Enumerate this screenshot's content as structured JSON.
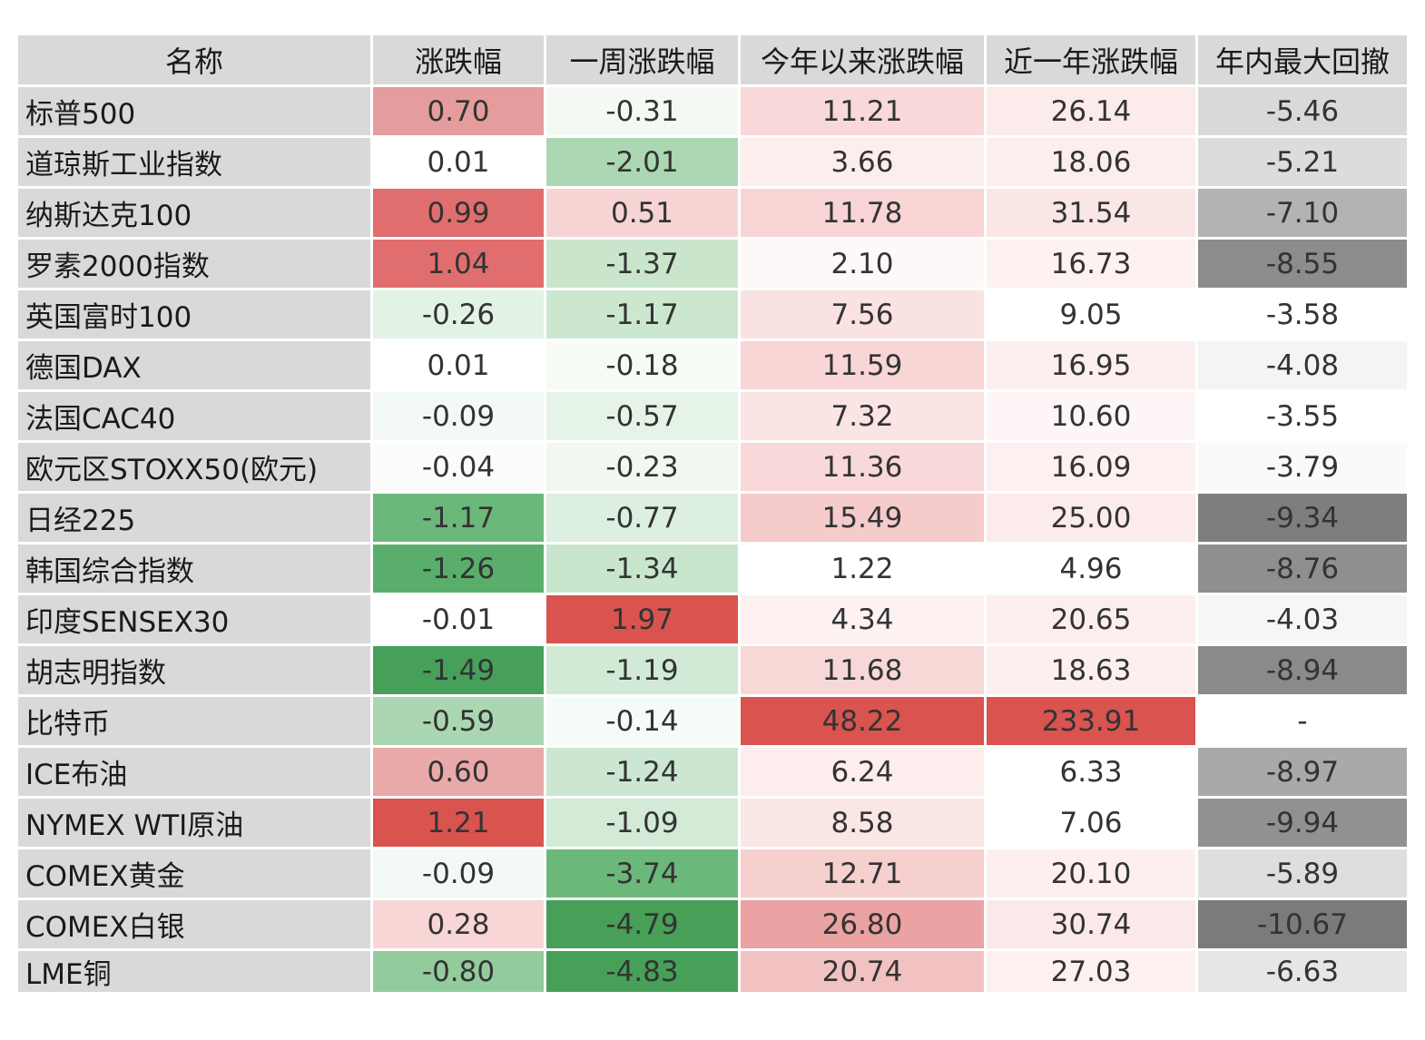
{
  "chart_data": {
    "type": "table",
    "columns": [
      "名称",
      "涨跌幅",
      "一周涨跌幅",
      "今年以来涨跌幅",
      "近一年涨跌幅",
      "年内最大回撤"
    ],
    "rows": [
      [
        "标普500",
        "0.70",
        "-0.31",
        "11.21",
        "26.14",
        "-5.46"
      ],
      [
        "道琼斯工业指数",
        "0.01",
        "-2.01",
        "3.66",
        "18.06",
        "-5.21"
      ],
      [
        "纳斯达克100",
        "0.99",
        "0.51",
        "11.78",
        "31.54",
        "-7.10"
      ],
      [
        "罗素2000指数",
        "1.04",
        "-1.37",
        "2.10",
        "16.73",
        "-8.55"
      ],
      [
        "英国富时100",
        "-0.26",
        "-1.17",
        "7.56",
        "9.05",
        "-3.58"
      ],
      [
        "德国DAX",
        "0.01",
        "-0.18",
        "11.59",
        "16.95",
        "-4.08"
      ],
      [
        "法国CAC40",
        "-0.09",
        "-0.57",
        "7.32",
        "10.60",
        "-3.55"
      ],
      [
        "欧元区STOXX50(欧元)",
        "-0.04",
        "-0.23",
        "11.36",
        "16.09",
        "-3.79"
      ],
      [
        "日经225",
        "-1.17",
        "-0.77",
        "15.49",
        "25.00",
        "-9.34"
      ],
      [
        "韩国综合指数",
        "-1.26",
        "-1.34",
        "1.22",
        "4.96",
        "-8.76"
      ],
      [
        "印度SENSEX30",
        "-0.01",
        "1.97",
        "4.34",
        "20.65",
        "-4.03"
      ],
      [
        "胡志明指数",
        "-1.49",
        "-1.19",
        "11.68",
        "18.63",
        "-8.94"
      ],
      [
        "比特币",
        "-0.59",
        "-0.14",
        "48.22",
        "233.91",
        "-"
      ],
      [
        "ICE布油",
        "0.60",
        "-1.24",
        "6.24",
        "6.33",
        "-8.97"
      ],
      [
        "NYMEX WTI原油",
        "1.21",
        "-1.09",
        "8.58",
        "7.06",
        "-9.94"
      ],
      [
        "COMEX黄金",
        "-0.09",
        "-3.74",
        "12.71",
        "20.10",
        "-5.89"
      ],
      [
        "COMEX白银",
        "0.28",
        "-4.79",
        "26.80",
        "30.74",
        "-10.67"
      ],
      [
        "LME铜",
        "-0.80",
        "-4.83",
        "20.74",
        "27.03",
        "-6.63"
      ]
    ],
    "cell_colors": [
      [
        "#e59c9c",
        "#f4f9f4",
        "#f8d8d8",
        "#fcebeb",
        "#d9d9d9"
      ],
      [
        "#ffffff",
        "#acd7b3",
        "#fdeeee",
        "#fdeeee",
        "#dcdcdc"
      ],
      [
        "#e16e6e",
        "#f7d4d4",
        "#f8d4d4",
        "#fbe6e6",
        "#b3b3b3"
      ],
      [
        "#e16e6e",
        "#c9e6cd",
        "#fff8f8",
        "#fdf1f1",
        "#8c8c8c"
      ],
      [
        "#e2f2e4",
        "#cce7d0",
        "#fae2e2",
        "#ffffff",
        "#ffffff"
      ],
      [
        "#ffffff",
        "#f6fbf6",
        "#f8d6d6",
        "#fdefef",
        "#f4f4f4"
      ],
      [
        "#f3f9f4",
        "#e6f4e8",
        "#fae4e4",
        "#fef6f6",
        "#ffffff"
      ],
      [
        "#f9fcf9",
        "#f0f8f1",
        "#f8d8d8",
        "#fdf0f0",
        "#fafafa"
      ],
      [
        "#6bb87b",
        "#ddefe0",
        "#f6cbcb",
        "#fcebeb",
        "#7e7e7e"
      ],
      [
        "#5aae6b",
        "#c8e6cd",
        "#ffffff",
        "#ffffff",
        "#8f8f8f"
      ],
      [
        "#ffffff",
        "#d9534f",
        "#fdf1f1",
        "#fdeeee",
        "#f6f6f6"
      ],
      [
        "#47a05a",
        "#d1ead5",
        "#f8d7d7",
        "#fdefef",
        "#8a8a8a"
      ],
      [
        "#abd6b2",
        "#f5fbf6",
        "#d9534f",
        "#d9534f",
        "#ffffff"
      ],
      [
        "#eaa9a9",
        "#cce7d1",
        "#fdeded",
        "#ffffff",
        "#a9a9a9"
      ],
      [
        "#d9534f",
        "#d2ead6",
        "#fbe6e6",
        "#ffffff",
        "#919191"
      ],
      [
        "#f3f9f4",
        "#6bb87b",
        "#f6cfcf",
        "#fdefef",
        "#dedede"
      ],
      [
        "#f8d6d6",
        "#479f58",
        "#eaa2a2",
        "#fbe9e9",
        "#7b7b7b"
      ],
      [
        "#92cc9d",
        "#46a057",
        "#f2c2c2",
        "#fdf0f0",
        "#e6e6e6"
      ]
    ],
    "value_column_widths": [
      188,
      211,
      268,
      230,
      230
    ]
  }
}
